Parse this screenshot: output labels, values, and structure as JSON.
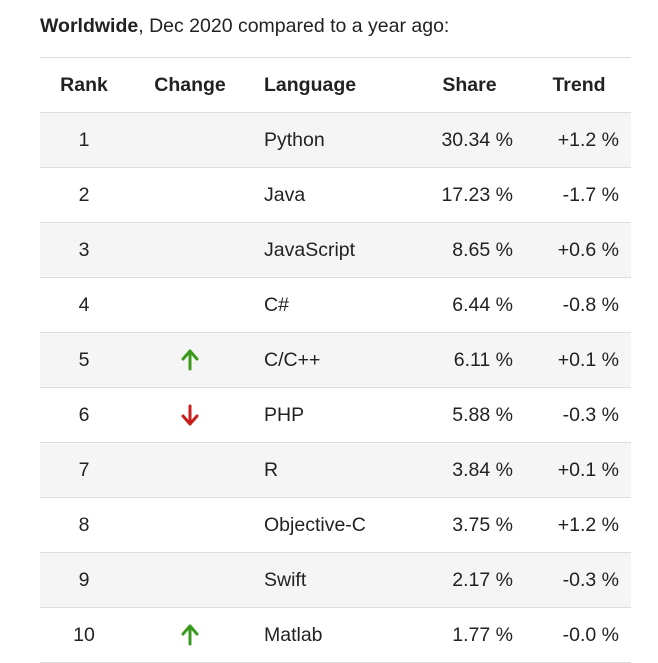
{
  "caption": {
    "bold": "Worldwide",
    "rest": ", Dec 2020 compared to a year ago:"
  },
  "headers": {
    "rank": "Rank",
    "change": "Change",
    "language": "Language",
    "share": "Share",
    "trend": "Trend"
  },
  "colors": {
    "up": "#3a9a1e",
    "down": "#c81e1e"
  },
  "rows": [
    {
      "rank": "1",
      "change": "",
      "language": "Python",
      "share": "30.34 %",
      "trend": "+1.2 %"
    },
    {
      "rank": "2",
      "change": "",
      "language": "Java",
      "share": "17.23 %",
      "trend": "-1.7 %"
    },
    {
      "rank": "3",
      "change": "",
      "language": "JavaScript",
      "share": "8.65 %",
      "trend": "+0.6 %"
    },
    {
      "rank": "4",
      "change": "",
      "language": "C#",
      "share": "6.44 %",
      "trend": "-0.8 %"
    },
    {
      "rank": "5",
      "change": "up",
      "language": "C/C++",
      "share": "6.11 %",
      "trend": "+0.1 %"
    },
    {
      "rank": "6",
      "change": "down",
      "language": "PHP",
      "share": "5.88 %",
      "trend": "-0.3 %"
    },
    {
      "rank": "7",
      "change": "",
      "language": "R",
      "share": "3.84 %",
      "trend": "+0.1 %"
    },
    {
      "rank": "8",
      "change": "",
      "language": "Objective-C",
      "share": "3.75 %",
      "trend": "+1.2 %"
    },
    {
      "rank": "9",
      "change": "",
      "language": "Swift",
      "share": "2.17 %",
      "trend": "-0.3 %"
    },
    {
      "rank": "10",
      "change": "up",
      "language": "Matlab",
      "share": "1.77 %",
      "trend": "-0.0 %"
    }
  ]
}
